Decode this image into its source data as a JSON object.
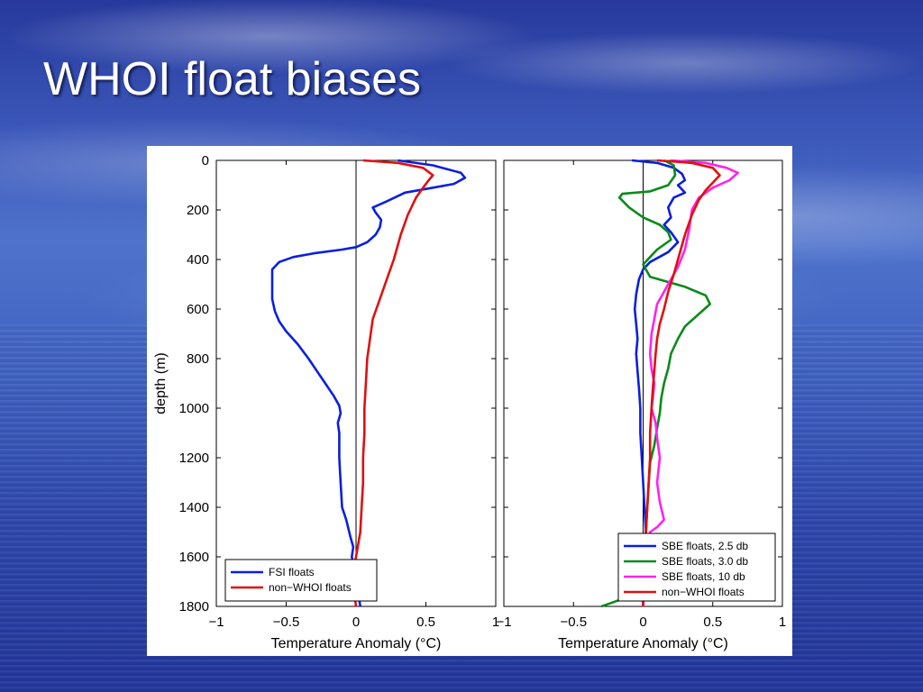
{
  "slide": {
    "title": "WHOI float biases"
  },
  "chart_data": [
    {
      "type": "line",
      "orientation": "vertical-profile",
      "title": "",
      "xlabel": "Temperature Anomaly (°C)",
      "ylabel": "depth (m)",
      "xlim": [
        -1,
        1
      ],
      "ylim": [
        1800,
        0
      ],
      "y_reversed": true,
      "xticks": [
        -1,
        -0.5,
        0,
        0.5,
        1
      ],
      "xtick_labels": [
        "−1",
        "−0.5",
        "0",
        "0.5",
        "1"
      ],
      "yticks": [
        0,
        200,
        400,
        600,
        800,
        1000,
        1200,
        1400,
        1600,
        1800
      ],
      "ytick_labels": [
        "0",
        "200",
        "400",
        "600",
        "800",
        "1000",
        "1200",
        "1400",
        "1600",
        "1800"
      ],
      "zero_line": true,
      "legend_position": "bottom-left",
      "series": [
        {
          "name": "FSI floats",
          "color": "#0a1fe0",
          "points": [
            [
              0.3,
              0
            ],
            [
              0.55,
              20
            ],
            [
              0.75,
              50
            ],
            [
              0.78,
              70
            ],
            [
              0.7,
              95
            ],
            [
              0.55,
              110
            ],
            [
              0.35,
              130
            ],
            [
              0.22,
              165
            ],
            [
              0.12,
              190
            ],
            [
              0.14,
              210
            ],
            [
              0.18,
              240
            ],
            [
              0.17,
              270
            ],
            [
              0.14,
              300
            ],
            [
              0.08,
              330
            ],
            [
              0.0,
              350
            ],
            [
              -0.1,
              360
            ],
            [
              -0.3,
              375
            ],
            [
              -0.45,
              390
            ],
            [
              -0.55,
              410
            ],
            [
              -0.6,
              440
            ],
            [
              -0.6,
              500
            ],
            [
              -0.6,
              560
            ],
            [
              -0.58,
              610
            ],
            [
              -0.55,
              650
            ],
            [
              -0.5,
              690
            ],
            [
              -0.42,
              740
            ],
            [
              -0.34,
              800
            ],
            [
              -0.28,
              850
            ],
            [
              -0.22,
              900
            ],
            [
              -0.16,
              950
            ],
            [
              -0.12,
              990
            ],
            [
              -0.11,
              1020
            ],
            [
              -0.13,
              1060
            ],
            [
              -0.12,
              1100
            ],
            [
              -0.12,
              1200
            ],
            [
              -0.11,
              1300
            ],
            [
              -0.1,
              1400
            ],
            [
              -0.07,
              1450
            ],
            [
              -0.04,
              1520
            ],
            [
              -0.02,
              1560
            ],
            [
              -0.03,
              1600
            ],
            [
              -0.01,
              1650
            ],
            [
              0.0,
              1700
            ],
            [
              0.02,
              1760
            ],
            [
              0.03,
              1800
            ]
          ]
        },
        {
          "name": "non−WHOI floats",
          "color": "#e01010",
          "points": [
            [
              0.05,
              0
            ],
            [
              0.3,
              10
            ],
            [
              0.48,
              30
            ],
            [
              0.55,
              60
            ],
            [
              0.52,
              80
            ],
            [
              0.48,
              110
            ],
            [
              0.43,
              150
            ],
            [
              0.37,
              220
            ],
            [
              0.32,
              300
            ],
            [
              0.27,
              400
            ],
            [
              0.22,
              480
            ],
            [
              0.17,
              560
            ],
            [
              0.12,
              640
            ],
            [
              0.1,
              720
            ],
            [
              0.08,
              800
            ],
            [
              0.07,
              900
            ],
            [
              0.06,
              1000
            ],
            [
              0.06,
              1100
            ],
            [
              0.05,
              1200
            ],
            [
              0.05,
              1300
            ],
            [
              0.04,
              1400
            ],
            [
              0.03,
              1500
            ],
            [
              0.0,
              1600
            ],
            [
              -0.02,
              1660
            ],
            [
              -0.02,
              1700
            ],
            [
              -0.01,
              1760
            ],
            [
              0.0,
              1800
            ]
          ]
        }
      ]
    },
    {
      "type": "line",
      "orientation": "vertical-profile",
      "title": "",
      "xlabel": "Temperature Anomaly (°C)",
      "ylabel": "",
      "xlim": [
        -1,
        1
      ],
      "ylim": [
        1800,
        0
      ],
      "y_reversed": true,
      "xticks": [
        -1,
        -0.5,
        0,
        0.5,
        1
      ],
      "xtick_labels": [
        "−1",
        "−0.5",
        "0",
        "0.5",
        "1"
      ],
      "zero_line": true,
      "legend_position": "bottom-right",
      "series": [
        {
          "name": "SBE floats, 2.5 db",
          "color": "#0a1fe0",
          "points": [
            [
              -0.08,
              0
            ],
            [
              0.1,
              10
            ],
            [
              0.22,
              30
            ],
            [
              0.28,
              55
            ],
            [
              0.3,
              80
            ],
            [
              0.25,
              100
            ],
            [
              0.3,
              130
            ],
            [
              0.22,
              150
            ],
            [
              0.18,
              190
            ],
            [
              0.2,
              230
            ],
            [
              0.15,
              260
            ],
            [
              0.2,
              290
            ],
            [
              0.25,
              330
            ],
            [
              0.18,
              370
            ],
            [
              0.05,
              410
            ],
            [
              0.0,
              440
            ],
            [
              -0.03,
              480
            ],
            [
              -0.05,
              540
            ],
            [
              -0.06,
              600
            ],
            [
              -0.05,
              660
            ],
            [
              -0.04,
              720
            ],
            [
              -0.05,
              780
            ],
            [
              -0.04,
              850
            ],
            [
              -0.03,
              920
            ],
            [
              -0.02,
              1000
            ],
            [
              -0.02,
              1100
            ],
            [
              -0.01,
              1200
            ],
            [
              0.0,
              1300
            ],
            [
              0.01,
              1400
            ],
            [
              0.02,
              1500
            ],
            [
              0.01,
              1600
            ],
            [
              0.0,
              1700
            ],
            [
              0.0,
              1800
            ]
          ]
        },
        {
          "name": "SBE floats, 3.0 db",
          "color": "#0a8a1a",
          "points": [
            [
              0.15,
              0
            ],
            [
              0.22,
              20
            ],
            [
              0.23,
              60
            ],
            [
              0.18,
              100
            ],
            [
              0.05,
              125
            ],
            [
              -0.15,
              135
            ],
            [
              -0.17,
              150
            ],
            [
              -0.1,
              190
            ],
            [
              0.0,
              230
            ],
            [
              0.12,
              260
            ],
            [
              0.18,
              290
            ],
            [
              0.2,
              320
            ],
            [
              0.1,
              360
            ],
            [
              0.05,
              390
            ],
            [
              0.0,
              420
            ],
            [
              0.05,
              470
            ],
            [
              0.3,
              510
            ],
            [
              0.45,
              545
            ],
            [
              0.48,
              580
            ],
            [
              0.4,
              620
            ],
            [
              0.3,
              670
            ],
            [
              0.25,
              720
            ],
            [
              0.2,
              780
            ],
            [
              0.18,
              840
            ],
            [
              0.15,
              900
            ],
            [
              0.13,
              960
            ],
            [
              0.12,
              1020
            ],
            [
              0.1,
              1080
            ],
            [
              0.08,
              1150
            ],
            [
              0.05,
              1220
            ],
            [
              0.04,
              1300
            ],
            [
              0.03,
              1400
            ],
            [
              0.02,
              1500
            ],
            [
              0.01,
              1600
            ],
            [
              -0.02,
              1700
            ],
            [
              -0.1,
              1760
            ],
            [
              -0.25,
              1790
            ],
            [
              -0.3,
              1800
            ]
          ]
        },
        {
          "name": "SBE floats, 10 db",
          "color": "#ff22ee",
          "points": [
            [
              0.2,
              0
            ],
            [
              0.45,
              10
            ],
            [
              0.6,
              30
            ],
            [
              0.68,
              50
            ],
            [
              0.62,
              80
            ],
            [
              0.5,
              110
            ],
            [
              0.4,
              150
            ],
            [
              0.35,
              200
            ],
            [
              0.33,
              280
            ],
            [
              0.3,
              360
            ],
            [
              0.25,
              430
            ],
            [
              0.2,
              480
            ],
            [
              0.15,
              530
            ],
            [
              0.1,
              580
            ],
            [
              0.08,
              640
            ],
            [
              0.06,
              700
            ],
            [
              0.05,
              780
            ],
            [
              0.06,
              840
            ],
            [
              0.08,
              900
            ],
            [
              0.07,
              960
            ],
            [
              0.06,
              1000
            ],
            [
              0.09,
              1060
            ],
            [
              0.1,
              1120
            ],
            [
              0.12,
              1200
            ],
            [
              0.1,
              1300
            ],
            [
              0.12,
              1380
            ],
            [
              0.15,
              1450
            ],
            [
              0.1,
              1480
            ],
            [
              0.05,
              1500
            ],
            [
              0.03,
              1550
            ],
            [
              0.02,
              1650
            ],
            [
              0.0,
              1800
            ]
          ]
        },
        {
          "name": "non−WHOI floats",
          "color": "#e01010",
          "points": [
            [
              0.1,
              0
            ],
            [
              0.35,
              10
            ],
            [
              0.5,
              30
            ],
            [
              0.55,
              60
            ],
            [
              0.5,
              90
            ],
            [
              0.45,
              120
            ],
            [
              0.4,
              160
            ],
            [
              0.35,
              220
            ],
            [
              0.3,
              300
            ],
            [
              0.26,
              380
            ],
            [
              0.22,
              460
            ],
            [
              0.18,
              530
            ],
            [
              0.15,
              600
            ],
            [
              0.12,
              660
            ],
            [
              0.1,
              720
            ],
            [
              0.09,
              780
            ],
            [
              0.08,
              850
            ],
            [
              0.07,
              920
            ],
            [
              0.06,
              1000
            ],
            [
              0.05,
              1100
            ],
            [
              0.05,
              1200
            ],
            [
              0.04,
              1300
            ],
            [
              0.03,
              1400
            ],
            [
              0.02,
              1500
            ],
            [
              0.01,
              1600
            ],
            [
              0.0,
              1700
            ],
            [
              0.0,
              1800
            ]
          ]
        }
      ]
    }
  ]
}
